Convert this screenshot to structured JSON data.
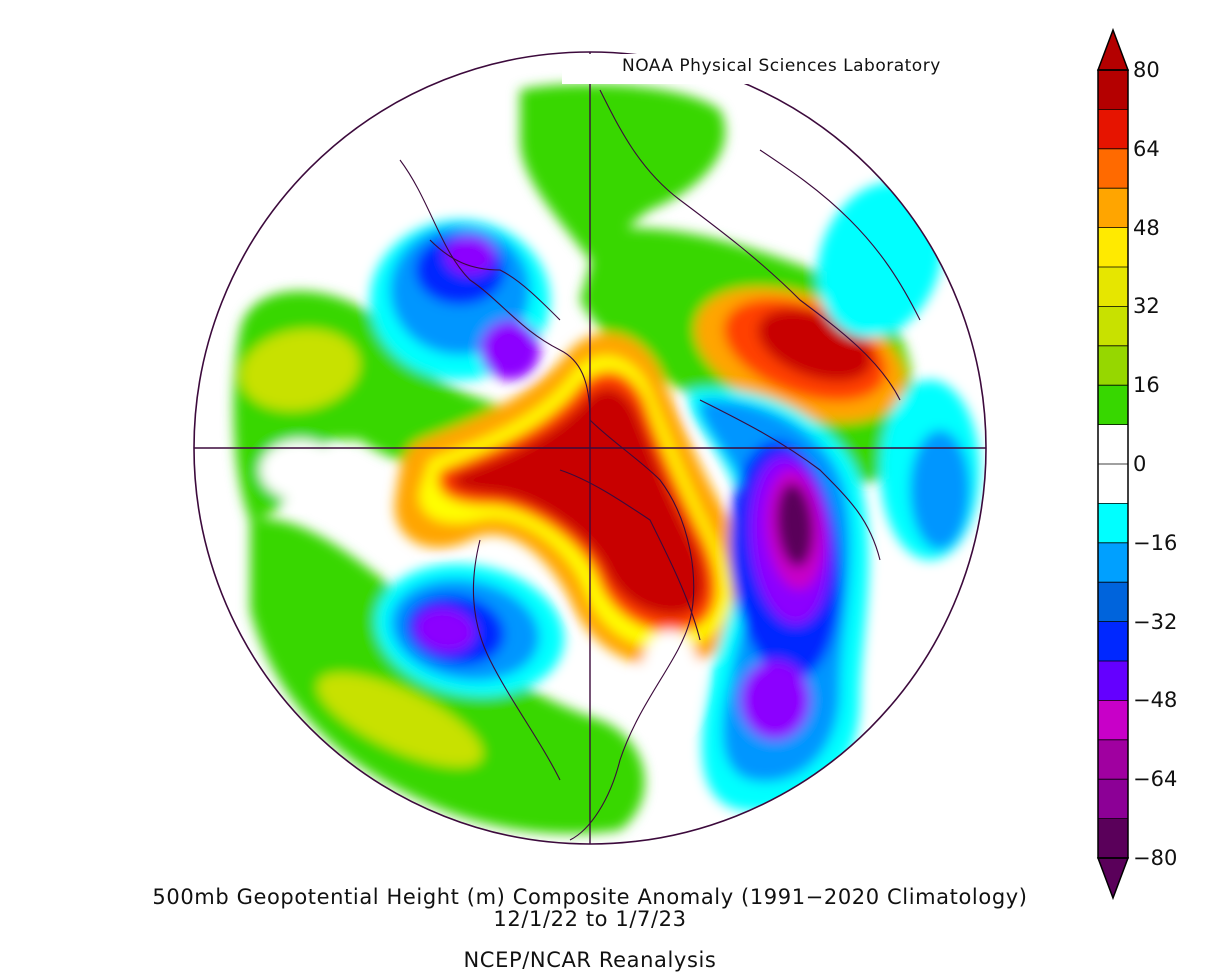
{
  "credit": "NOAA Physical Sciences Laboratory",
  "caption": {
    "line1": "500mb Geopotential Height (m) Composite Anomaly (1991−2020 Climatology)",
    "line2": "12/1/22   to 1/7/23",
    "line3": "NCEP/NCAR Reanalysis"
  },
  "colorbar": {
    "tick_labels": [
      "80",
      "64",
      "48",
      "32",
      "16",
      "0",
      "−16",
      "−32",
      "−48",
      "−64",
      "−80"
    ],
    "levels_top_to_bottom": [
      "#b40000",
      "#e61400",
      "#ff6a00",
      "#ffa500",
      "#ffea00",
      "#e6e600",
      "#c8e100",
      "#96d700",
      "#37d700",
      "#ffffff",
      "#ffffff",
      "#00ffff",
      "#00a0ff",
      "#0064dc",
      "#0028ff",
      "#6400ff",
      "#c800c8",
      "#a000a0",
      "#8c0096",
      "#5a005a"
    ],
    "over_color": "#b40000",
    "under_color": "#5a005a"
  },
  "map": {
    "projection": "north polar stereographic",
    "field_colors": {
      "strong_positive": "#c80000",
      "positive_high": "#ff4000",
      "positive_mid": "#ffa500",
      "positive_low": "#ffff00",
      "weak_positive": "#c8e100",
      "slight_positive": "#37d700",
      "neutral": "#ffffff",
      "slight_negative": "#00ffff",
      "weak_negative": "#0096ff",
      "negative_mid": "#0028ff",
      "negative_high": "#8c00ff",
      "strong_negative": "#c800c8",
      "extreme_negative": "#5a005a"
    },
    "line_color": "#3c0a3c"
  }
}
